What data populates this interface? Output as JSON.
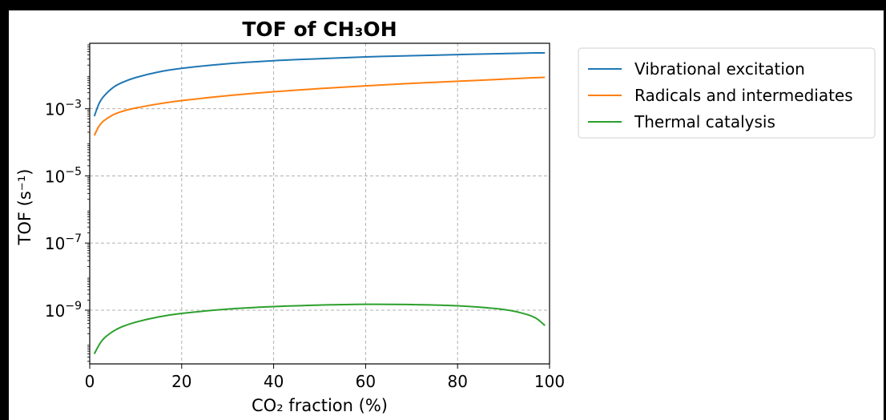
{
  "chart_data": {
    "type": "line",
    "title": "TOF of CH₃OH",
    "xlabel": "CO₂ fraction (%)",
    "ylabel": "TOF (s⁻¹)",
    "xlim": [
      0,
      100
    ],
    "ylim_log10": [
      -10.6,
      -1.05
    ],
    "yscale": "log",
    "grid": true,
    "legend_position": "outside-right-top",
    "x_ticks": [
      "0",
      "20",
      "40",
      "60",
      "80",
      "100"
    ],
    "y_ticks": [
      {
        "base": "10",
        "exp": "−3",
        "value_log10": -3
      },
      {
        "base": "10",
        "exp": "−5",
        "value_log10": -5
      },
      {
        "base": "10",
        "exp": "−7",
        "value_log10": -7
      },
      {
        "base": "10",
        "exp": "−9",
        "value_log10": -9
      }
    ],
    "x": [
      1,
      2,
      3,
      5,
      7,
      10,
      15,
      20,
      30,
      40,
      50,
      60,
      70,
      80,
      90,
      95,
      97,
      98,
      99
    ],
    "series": [
      {
        "name": "Vibrational excitation",
        "color": "#1f77b4",
        "values": [
          0.0006,
          0.0014,
          0.0023,
          0.0042,
          0.006,
          0.0085,
          0.0125,
          0.016,
          0.022,
          0.027,
          0.031,
          0.035,
          0.038,
          0.041,
          0.044,
          0.0455,
          0.046,
          0.046,
          0.046
        ]
      },
      {
        "name": "Radicals and intermediates",
        "color": "#ff7f0e",
        "values": [
          0.00016,
          0.0003,
          0.00043,
          0.00065,
          0.00083,
          0.00105,
          0.0014,
          0.00175,
          0.00245,
          0.0032,
          0.004,
          0.0048,
          0.0057,
          0.0066,
          0.0076,
          0.0082,
          0.0084,
          0.0085,
          0.0086
        ]
      },
      {
        "name": "Thermal catalysis",
        "color": "#2ca02c",
        "values": [
          5e-11,
          9e-11,
          1.4e-10,
          2.3e-10,
          3.2e-10,
          4.4e-10,
          6.3e-10,
          8e-10,
          1.08e-09,
          1.28e-09,
          1.42e-09,
          1.5e-09,
          1.47e-09,
          1.35e-09,
          1.05e-09,
          7.5e-10,
          5.8e-10,
          4.6e-10,
          3.5e-10
        ]
      }
    ]
  }
}
